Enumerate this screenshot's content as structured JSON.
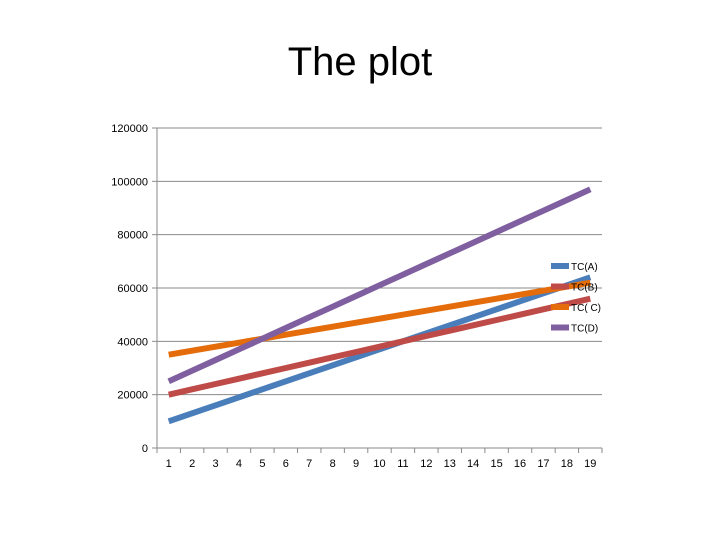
{
  "chart_data": {
    "type": "line",
    "title": "The plot",
    "xlabel": "",
    "ylabel": "",
    "x": [
      1,
      2,
      3,
      4,
      5,
      6,
      7,
      8,
      9,
      10,
      11,
      12,
      13,
      14,
      15,
      16,
      17,
      18,
      19
    ],
    "ylim": [
      0,
      120000
    ],
    "yticks": [
      0,
      20000,
      40000,
      60000,
      80000,
      100000,
      120000
    ],
    "grid": true,
    "legend_position": "right",
    "series": [
      {
        "name": "TC(A)",
        "color": "#4a7ebb",
        "values": [
          10000,
          13000,
          16000,
          19000,
          22000,
          25000,
          28000,
          31000,
          34000,
          37000,
          40000,
          43000,
          46000,
          49000,
          52000,
          55000,
          58000,
          61000,
          64000
        ]
      },
      {
        "name": "TC(B)",
        "color": "#be4b48",
        "values": [
          20000,
          22000,
          24000,
          26000,
          28000,
          30000,
          32000,
          34000,
          36000,
          38000,
          40000,
          42000,
          44000,
          46000,
          48000,
          50000,
          52000,
          54000,
          56000
        ]
      },
      {
        "name": "TC( C)",
        "color": "#e46c0a",
        "values": [
          35000,
          36500,
          38000,
          39500,
          41000,
          42500,
          44000,
          45500,
          47000,
          48500,
          50000,
          51500,
          53000,
          54500,
          56000,
          57500,
          59000,
          60500,
          62000
        ]
      },
      {
        "name": "TC(D)",
        "color": "#7f5f9f",
        "values": [
          25000,
          29000,
          33000,
          37000,
          41000,
          45000,
          49000,
          53000,
          57000,
          61000,
          65000,
          69000,
          73000,
          77000,
          81000,
          85000,
          89000,
          93000,
          97000
        ]
      }
    ]
  }
}
